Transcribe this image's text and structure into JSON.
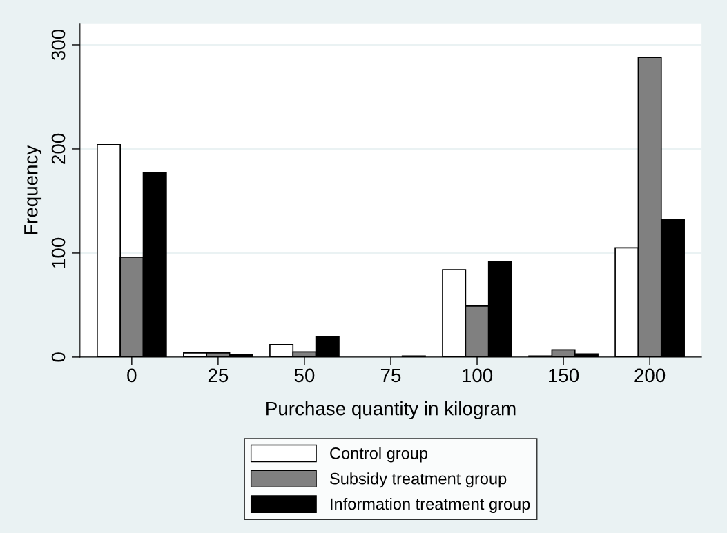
{
  "chart_data": {
    "type": "bar",
    "xlabel": "Purchase quantity in kilogram",
    "ylabel": "Frequency",
    "categories": [
      "0",
      "25",
      "50",
      "75",
      "100",
      "150",
      "200"
    ],
    "series": [
      {
        "name": "Control group",
        "color": "#ffffff",
        "values": [
          204,
          4,
          12,
          null,
          84,
          1,
          105
        ]
      },
      {
        "name": "Subsidy treatment group",
        "color": "#808080",
        "values": [
          96,
          4,
          5,
          null,
          49,
          7,
          288
        ]
      },
      {
        "name": "Information treatment group",
        "color": "#000000",
        "values": [
          177,
          2,
          20,
          1,
          92,
          3,
          132
        ]
      }
    ],
    "ylim": [
      0,
      320
    ],
    "yticks": [
      0,
      100,
      200,
      300
    ],
    "grid": "y",
    "legend": "bottom"
  }
}
